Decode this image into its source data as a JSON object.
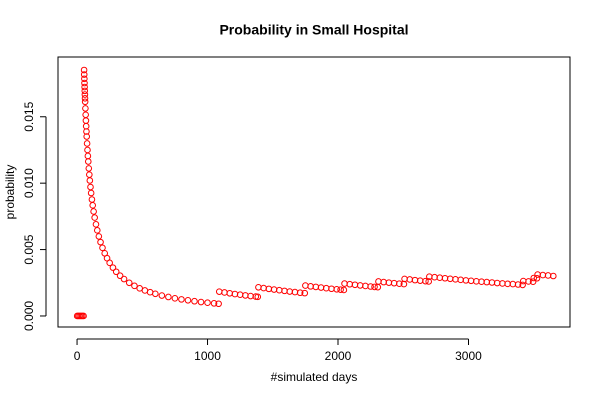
{
  "chart_data": {
    "type": "scatter",
    "title": "Probability in Small Hospital",
    "x_label": "#simulated days",
    "y_label": "probability",
    "color": "#ff0000",
    "marker": "open-circle",
    "x": [
      1,
      10,
      20,
      30,
      40,
      50,
      54,
      55,
      56,
      57,
      58,
      59,
      60,
      61,
      62,
      64,
      66,
      68,
      70,
      72,
      74,
      77,
      80,
      83,
      86,
      90,
      94,
      98,
      103,
      108,
      114,
      120,
      127,
      135,
      145,
      155,
      167,
      180,
      195,
      212,
      230,
      250,
      275,
      300,
      330,
      360,
      400,
      440,
      480,
      520,
      560,
      600,
      650,
      700,
      750,
      800,
      850,
      900,
      950,
      1000,
      1050,
      1085,
      1090,
      1130,
      1170,
      1210,
      1250,
      1290,
      1330,
      1370,
      1385,
      1390,
      1430,
      1470,
      1510,
      1550,
      1590,
      1630,
      1670,
      1710,
      1745,
      1750,
      1790,
      1830,
      1870,
      1910,
      1950,
      1990,
      2020,
      2045,
      2050,
      2090,
      2130,
      2170,
      2210,
      2250,
      2280,
      2305,
      2310,
      2350,
      2390,
      2430,
      2470,
      2505,
      2510,
      2550,
      2590,
      2630,
      2670,
      2695,
      2700,
      2740,
      2780,
      2820,
      2860,
      2900,
      2940,
      2980,
      3020,
      3060,
      3100,
      3140,
      3180,
      3220,
      3260,
      3300,
      3340,
      3380,
      3415,
      3420,
      3460,
      3495,
      3500,
      3525,
      3530,
      3570,
      3610,
      3650
    ],
    "values": [
      0,
      0,
      0,
      0,
      0,
      0,
      0.01852,
      0.01818,
      0.01786,
      0.01754,
      0.01724,
      0.01695,
      0.01667,
      0.01639,
      0.01613,
      0.01563,
      0.01515,
      0.01471,
      0.01429,
      0.01389,
      0.01351,
      0.01299,
      0.0125,
      0.01205,
      0.01163,
      0.01111,
      0.01064,
      0.0102,
      0.00971,
      0.00926,
      0.00877,
      0.00833,
      0.00787,
      0.00741,
      0.0069,
      0.00645,
      0.00599,
      0.00556,
      0.00513,
      0.00472,
      0.00435,
      0.004,
      0.00364,
      0.00333,
      0.00303,
      0.00278,
      0.0025,
      0.00227,
      0.00208,
      0.00192,
      0.00179,
      0.00167,
      0.00154,
      0.00143,
      0.00133,
      0.00125,
      0.00118,
      0.00111,
      0.00105,
      0.001,
      0.00095,
      0.00092,
      0.00183,
      0.00177,
      0.00171,
      0.00165,
      0.0016,
      0.00155,
      0.0015,
      0.00146,
      0.00144,
      0.00216,
      0.0021,
      0.00204,
      0.00199,
      0.00194,
      0.00189,
      0.00184,
      0.0018,
      0.00175,
      0.00172,
      0.00229,
      0.00223,
      0.00219,
      0.00214,
      0.00209,
      0.00205,
      0.00201,
      0.00198,
      0.00196,
      0.00244,
      0.00239,
      0.00235,
      0.0023,
      0.00226,
      0.00222,
      0.00219,
      0.00217,
      0.0026,
      0.00255,
      0.00251,
      0.00247,
      0.00243,
      0.0024,
      0.00279,
      0.00275,
      0.0027,
      0.00266,
      0.00262,
      0.0026,
      0.00296,
      0.00292,
      0.00288,
      0.00284,
      0.0028,
      0.00276,
      0.00272,
      0.00268,
      0.00265,
      0.00261,
      0.00258,
      0.00255,
      0.00252,
      0.00248,
      0.00245,
      0.00242,
      0.0024,
      0.00237,
      0.00234,
      0.00263,
      0.0026,
      0.00258,
      0.00286,
      0.00284,
      0.00312,
      0.00308,
      0.00305,
      0.00301
    ],
    "xlim": [
      -146,
      3778
    ],
    "ylim": [
      -0.00083,
      0.0195
    ],
    "xticks": [
      0,
      1000,
      2000,
      3000
    ],
    "yticks": [
      {
        "value": 0,
        "label": "0.000"
      },
      {
        "value": 0.005,
        "label": "0.005"
      },
      {
        "value": 0.01,
        "label": "0.010"
      },
      {
        "value": 0.015,
        "label": "0.015"
      }
    ]
  }
}
